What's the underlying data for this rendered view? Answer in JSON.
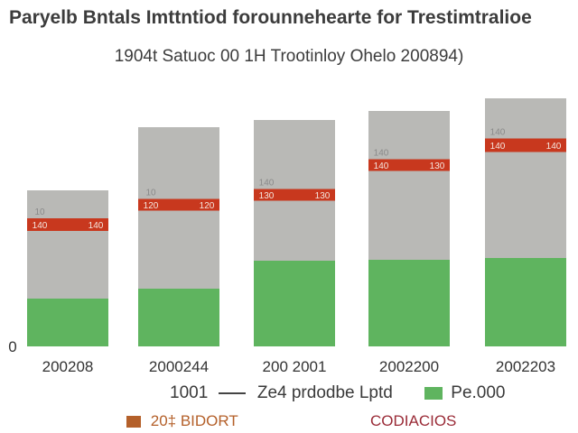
{
  "chart_data": {
    "type": "bar",
    "title": "Paryelb Bntals Imttntiod forounnehearte for Trestimtralioe",
    "subtitle": "1904t Satuoc 00 1H Trootinloy Ohelo 200894)",
    "categories": [
      "200208",
      "2000244",
      "200 2001",
      "2002200",
      "2002203"
    ],
    "series": [
      {
        "name": "Ze4 prdodbe Lptd",
        "values": [
          53,
          64,
          95,
          96,
          98
        ],
        "color": "#5fb45f"
      },
      {
        "name": "Pe.000",
        "values": [
          120,
          179,
          156,
          165,
          177
        ],
        "color": "#b9b9b6"
      },
      {
        "name": "",
        "values": [
          14,
          13,
          13,
          13,
          15
        ],
        "color": "#c8381e"
      }
    ],
    "marker_values": [
      135,
      157,
      168,
      201,
      223
    ],
    "band_labels": [
      [
        "140",
        "140"
      ],
      [
        "120",
        "120"
      ],
      [
        "130",
        "130"
      ],
      [
        "140",
        "130"
      ],
      [
        "140",
        "140"
      ]
    ],
    "band_top_labels": [
      "10",
      "10",
      "140",
      "140",
      "140"
    ],
    "y_tick_label": "0",
    "ylim": [
      0,
      248
    ],
    "xlabel": "",
    "ylabel": "",
    "legend": {
      "position": "bottom",
      "line_entry": {
        "prefix": "1001",
        "label": "Ze4 prdodbe Lptd"
      },
      "green_entry": {
        "label": "Pe.000"
      },
      "bottom_left": {
        "label": "20‡ BIDORT",
        "color": "#b4602a"
      },
      "bottom_right": {
        "label": "CODIACIOS",
        "color": "#9a2b37"
      }
    }
  }
}
